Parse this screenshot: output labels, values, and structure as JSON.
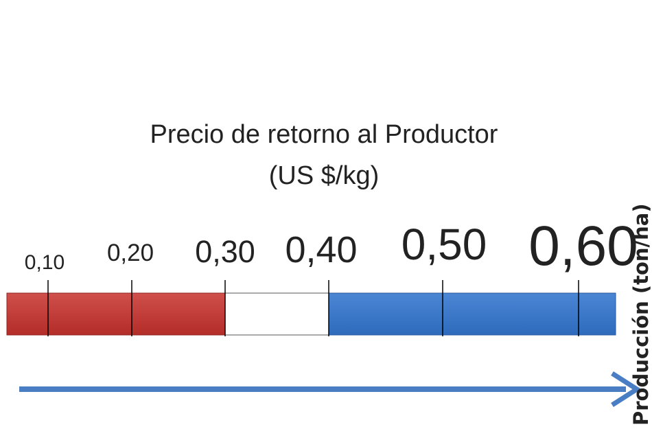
{
  "title": {
    "line1": "Precio de retorno al Productor",
    "line2": "(US $/kg)"
  },
  "scale": {
    "labels": [
      "0,10",
      "0,20",
      "0,30",
      "0,40",
      "0,50",
      "0,60"
    ]
  },
  "axis_label": "Producción (ton/ha)"
}
